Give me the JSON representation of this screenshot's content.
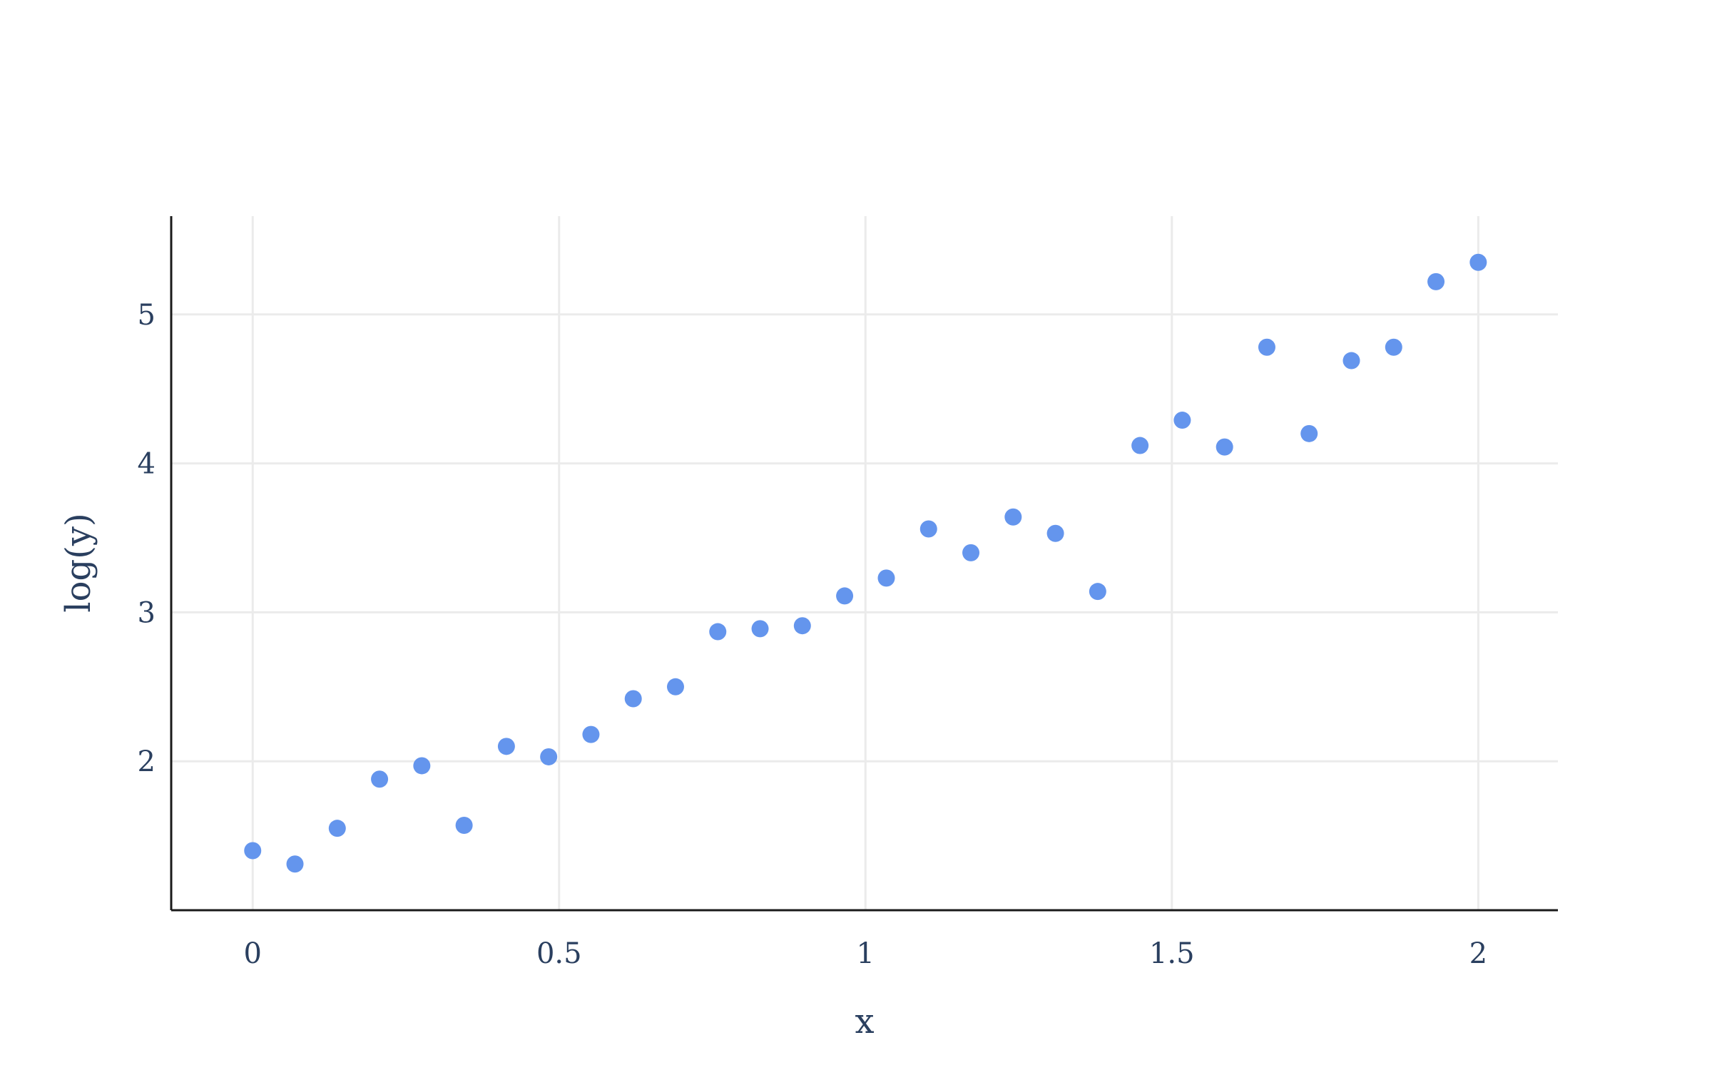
{
  "chart_data": {
    "type": "scatter",
    "title": "",
    "xlabel": "x",
    "ylabel": "log(y)",
    "xlim": [
      -0.133,
      2.13
    ],
    "ylim": [
      1.0,
      5.66
    ],
    "x_ticks": [
      0,
      0.5,
      1,
      1.5,
      2
    ],
    "x_tick_labels": [
      "0",
      "0.5",
      "1",
      "1.5",
      "2"
    ],
    "y_ticks": [
      2,
      3,
      4,
      5
    ],
    "y_tick_labels": [
      "2",
      "3",
      "4",
      "5"
    ],
    "grid": true,
    "marker_color": "#6495ED",
    "series": [
      {
        "x": [
          0.0,
          0.069,
          0.138,
          0.207,
          0.276,
          0.345,
          0.414,
          0.483,
          0.552,
          0.621,
          0.69,
          0.759,
          0.828,
          0.897,
          0.966,
          1.034,
          1.103,
          1.172,
          1.241,
          1.31,
          1.379,
          1.448,
          1.517,
          1.586,
          1.655,
          1.724,
          1.793,
          1.862,
          1.931,
          2.0
        ],
        "y": [
          1.4,
          1.31,
          1.55,
          1.88,
          1.97,
          1.57,
          2.1,
          2.03,
          2.18,
          2.42,
          2.5,
          2.87,
          2.89,
          2.91,
          3.11,
          3.23,
          3.56,
          3.4,
          3.64,
          3.53,
          3.14,
          4.12,
          4.29,
          4.11,
          4.78,
          4.2,
          4.69,
          4.78,
          5.22,
          5.35
        ]
      }
    ]
  }
}
